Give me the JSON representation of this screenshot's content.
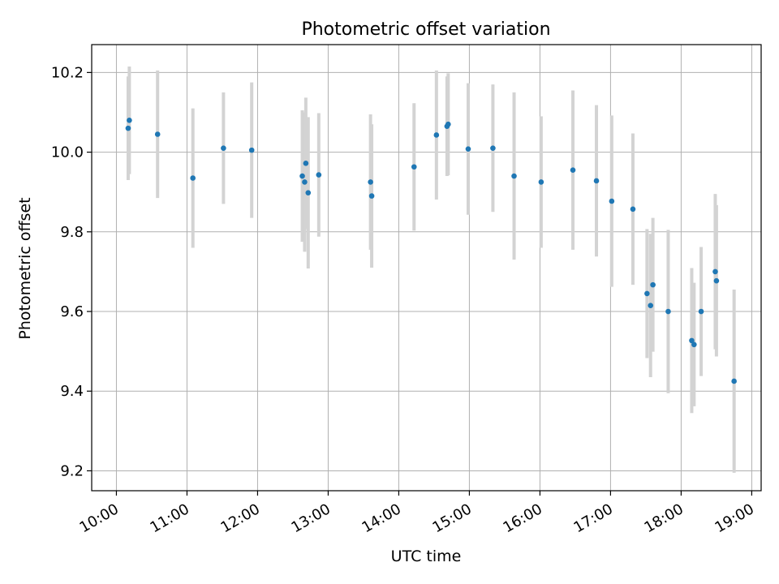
{
  "chart_data": {
    "type": "scatter",
    "title": "Photometric offset variation",
    "xlabel": "UTC time",
    "ylabel": "Photometric offset",
    "grid": true,
    "xlim": [
      "10:00",
      "19:00"
    ],
    "ylim": [
      9.15,
      10.27
    ],
    "x_ticks": [
      "10:00",
      "11:00",
      "12:00",
      "13:00",
      "14:00",
      "15:00",
      "16:00",
      "17:00",
      "18:00",
      "19:00"
    ],
    "y_ticks": [
      "9.2",
      "9.4",
      "9.6",
      "9.8",
      "10.0",
      "10.2"
    ],
    "point_color": "#1f77b4",
    "errorbar_color": "#d3d3d3",
    "points": [
      {
        "t": "10:10",
        "y": 10.06,
        "err": 0.13
      },
      {
        "t": "10:11",
        "y": 10.08,
        "err": 0.135
      },
      {
        "t": "10:35",
        "y": 10.045,
        "err": 0.16
      },
      {
        "t": "11:05",
        "y": 9.935,
        "err": 0.175
      },
      {
        "t": "11:31",
        "y": 10.01,
        "err": 0.14
      },
      {
        "t": "11:55",
        "y": 10.005,
        "err": 0.17
      },
      {
        "t": "12:38",
        "y": 9.94,
        "err": 0.165
      },
      {
        "t": "12:40",
        "y": 9.925,
        "err": 0.175
      },
      {
        "t": "12:41",
        "y": 9.972,
        "err": 0.165
      },
      {
        "t": "12:43",
        "y": 9.898,
        "err": 0.19
      },
      {
        "t": "12:52",
        "y": 9.943,
        "err": 0.155
      },
      {
        "t": "13:36",
        "y": 9.925,
        "err": 0.17
      },
      {
        "t": "13:37",
        "y": 9.89,
        "err": 0.18
      },
      {
        "t": "14:13",
        "y": 9.963,
        "err": 0.16
      },
      {
        "t": "14:32",
        "y": 10.043,
        "err": 0.162
      },
      {
        "t": "14:41",
        "y": 10.065,
        "err": 0.125
      },
      {
        "t": "14:42",
        "y": 10.07,
        "err": 0.128
      },
      {
        "t": "14:59",
        "y": 10.008,
        "err": 0.165
      },
      {
        "t": "15:20",
        "y": 10.01,
        "err": 0.16
      },
      {
        "t": "15:38",
        "y": 9.94,
        "err": 0.21
      },
      {
        "t": "16:01",
        "y": 9.925,
        "err": 0.165
      },
      {
        "t": "16:28",
        "y": 9.955,
        "err": 0.2
      },
      {
        "t": "16:48",
        "y": 9.928,
        "err": 0.19
      },
      {
        "t": "17:01",
        "y": 9.877,
        "err": 0.215
      },
      {
        "t": "17:19",
        "y": 9.857,
        "err": 0.19
      },
      {
        "t": "17:31",
        "y": 9.645,
        "err": 0.162
      },
      {
        "t": "17:34",
        "y": 9.615,
        "err": 0.18
      },
      {
        "t": "17:36",
        "y": 9.667,
        "err": 0.168
      },
      {
        "t": "17:49",
        "y": 9.6,
        "err": 0.205
      },
      {
        "t": "18:09",
        "y": 9.527,
        "err": 0.182
      },
      {
        "t": "18:11",
        "y": 9.517,
        "err": 0.155
      },
      {
        "t": "18:17",
        "y": 9.6,
        "err": 0.162
      },
      {
        "t": "18:29",
        "y": 9.7,
        "err": 0.195
      },
      {
        "t": "18:30",
        "y": 9.677,
        "err": 0.19
      },
      {
        "t": "18:45",
        "y": 9.425,
        "err": 0.23
      }
    ]
  }
}
